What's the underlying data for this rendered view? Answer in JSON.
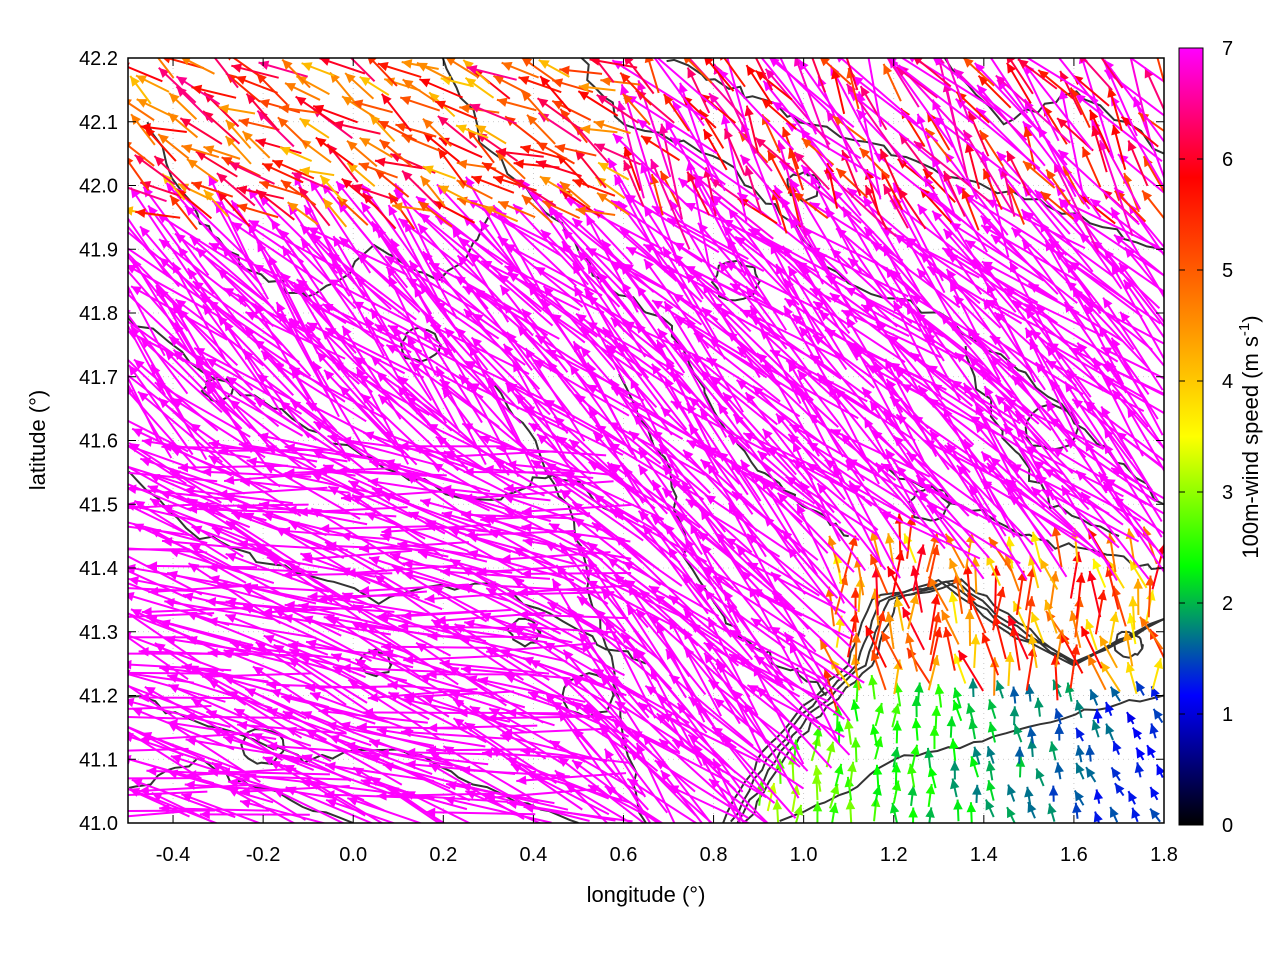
{
  "chart_data": {
    "type": "vector-field",
    "title": "",
    "xlabel": "longitude (°)",
    "ylabel": "latitude (°)",
    "xlim": [
      -0.5,
      1.8
    ],
    "ylim": [
      41.0,
      42.2
    ],
    "xticks": [
      "-0.4",
      "-0.2",
      "0.0",
      "0.2",
      "0.4",
      "0.6",
      "0.8",
      "1.0",
      "1.2",
      "1.4",
      "1.6",
      "1.8"
    ],
    "yticks": [
      "41.0",
      "41.1",
      "41.2",
      "41.3",
      "41.4",
      "41.5",
      "41.6",
      "41.7",
      "41.8",
      "41.9",
      "42.0",
      "42.1",
      "42.2"
    ],
    "colorbar": {
      "label": "100m-wind speed (m s",
      "label_sup": "-1",
      "label_end": ")",
      "range": [
        0,
        7
      ],
      "ticks": [
        "0",
        "1",
        "2",
        "3",
        "4",
        "5",
        "6",
        "7"
      ],
      "colors": [
        "#000000",
        "#0000ff",
        "#00ff00",
        "#ffff00",
        "#ff8000",
        "#ff0000",
        "#ff00ff"
      ]
    },
    "contour_color": "#333333",
    "wind_regimes": [
      {
        "region": "west and center",
        "direction": "from east-southeast",
        "speed": 7
      },
      {
        "region": "north",
        "direction": "from southeast",
        "speed": 5
      },
      {
        "region": "southeast coast",
        "direction": "from south",
        "speed": 1.5
      }
    ]
  }
}
